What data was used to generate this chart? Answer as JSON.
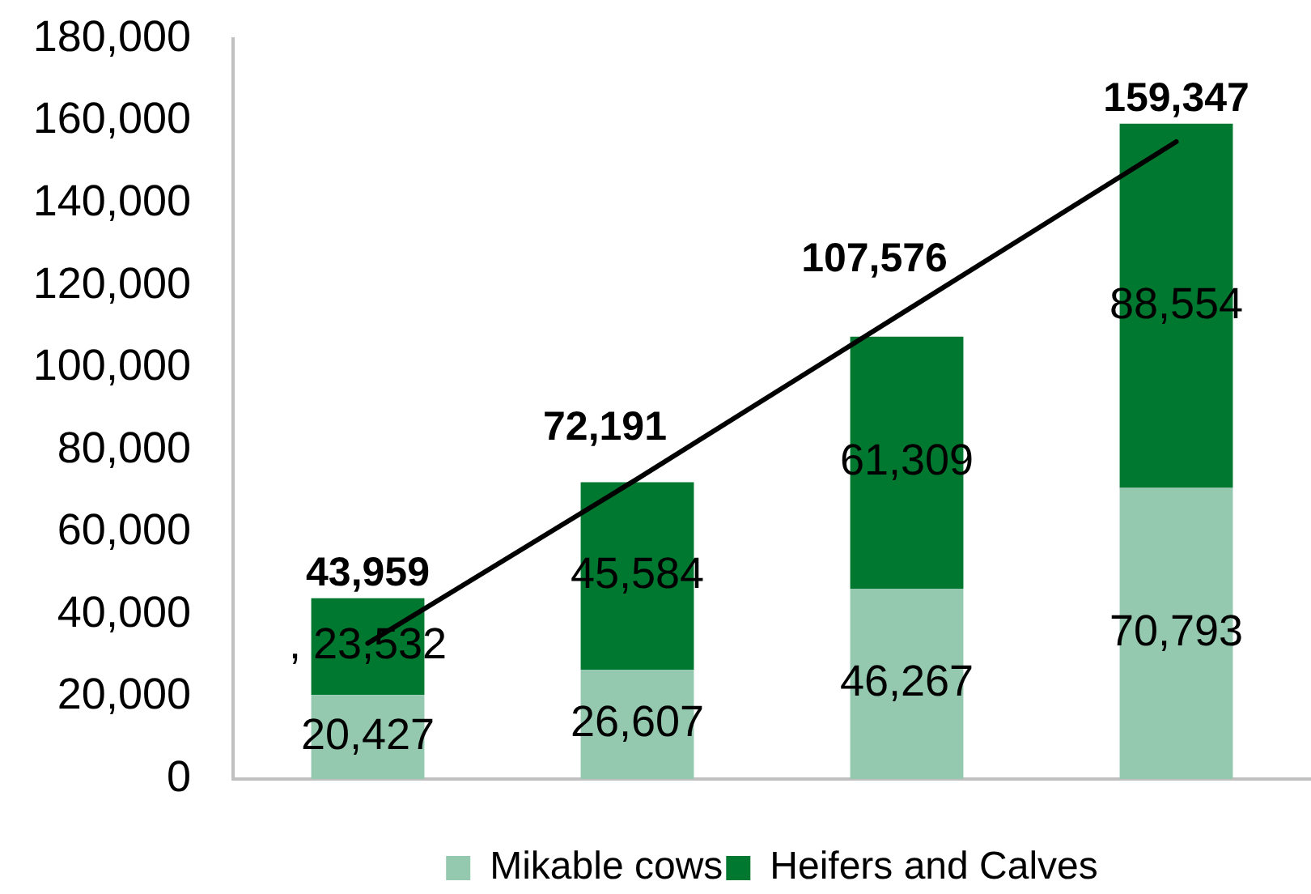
{
  "chart_data": {
    "type": "bar",
    "stacked": true,
    "categories": [
      null,
      null,
      null,
      null
    ],
    "series": [
      {
        "name": "Mikable cows",
        "color": "#94c9b0",
        "values": [
          20427,
          26607,
          46267,
          70793
        ],
        "value_labels": [
          "20,427",
          "26,607",
          "46,267",
          "70,793"
        ]
      },
      {
        "name": "Heifers and Calves",
        "color": "#00782f",
        "values": [
          23532,
          45584,
          61309,
          88554
        ],
        "value_labels": [
          ", 23,532",
          "45,584",
          "61,309",
          "88,554"
        ]
      },
      {
        "type": "line",
        "color": "#000000",
        "values": [
          33000,
          73000,
          114000,
          155000
        ]
      }
    ],
    "totals": [
      "43,959",
      "72,191",
      "107,576",
      "159,347"
    ],
    "ylim": [
      0,
      180000
    ],
    "yticks": [
      0,
      {
        "value": 20000,
        "label": "20,000"
      },
      {
        "value": 40000,
        "label": "40,000"
      },
      {
        "value": 60000,
        "label": "60,000"
      },
      {
        "value": 80000,
        "label": "80,000"
      },
      {
        "value": 100000,
        "label": "100,000"
      },
      {
        "value": 120000,
        "label": "120,000"
      },
      {
        "value": 140000,
        "label": "140,000"
      },
      {
        "value": 160000,
        "label": "160,000"
      },
      {
        "value": 180000,
        "label": "180,000"
      }
    ],
    "grid": false,
    "legend": "bottom",
    "marker": "none",
    "line_style": "solid"
  }
}
